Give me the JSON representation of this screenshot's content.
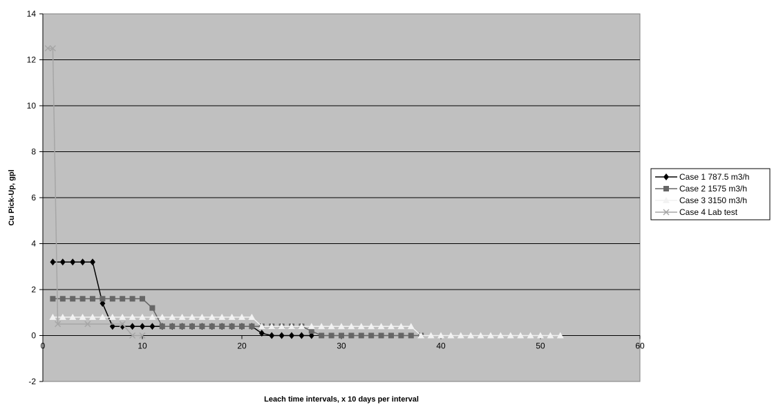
{
  "chart_data": {
    "type": "line",
    "title": "",
    "xlabel": "Leach time intervals, x 10 days per interval",
    "ylabel": "Cu Pick-Up, gpl",
    "xlim": [
      0,
      60
    ],
    "ylim": [
      -2,
      14
    ],
    "xticks": [
      0,
      10,
      20,
      30,
      40,
      50,
      60
    ],
    "yticks": [
      -2,
      0,
      2,
      4,
      6,
      8,
      10,
      12,
      14
    ],
    "grid": "horizontal",
    "legend_position": "right",
    "background": "#c0c0c0",
    "series": [
      {
        "name": "Case 1 787.5 m3/h",
        "color": "#000000",
        "marker": "diamond",
        "x": [
          1,
          2,
          3,
          4,
          5,
          6,
          7,
          8,
          9,
          10,
          11,
          12,
          13,
          14,
          15,
          16,
          17,
          18,
          19,
          20,
          21,
          22,
          23,
          24,
          25,
          26,
          27
        ],
        "y": [
          3.2,
          3.2,
          3.2,
          3.2,
          3.2,
          1.4,
          0.4,
          0.4,
          0.4,
          0.4,
          0.4,
          0.4,
          0.4,
          0.4,
          0.4,
          0.4,
          0.4,
          0.4,
          0.4,
          0.4,
          0.4,
          0.1,
          0,
          0,
          0,
          0,
          0
        ]
      },
      {
        "name": "Case 2 1575 m3/h",
        "color": "#666666",
        "marker": "square",
        "x": [
          1,
          2,
          3,
          4,
          5,
          6,
          7,
          8,
          9,
          10,
          11,
          12,
          13,
          14,
          15,
          16,
          17,
          18,
          19,
          20,
          21,
          22,
          23,
          24,
          25,
          26,
          27,
          28,
          29,
          30,
          31,
          32,
          33,
          34,
          35,
          36,
          37,
          38
        ],
        "y": [
          1.6,
          1.6,
          1.6,
          1.6,
          1.6,
          1.6,
          1.6,
          1.6,
          1.6,
          1.6,
          1.2,
          0.4,
          0.4,
          0.4,
          0.4,
          0.4,
          0.4,
          0.4,
          0.4,
          0.4,
          0.4,
          0.4,
          0.4,
          0.4,
          0.4,
          0.4,
          0.2,
          0,
          0,
          0,
          0,
          0,
          0,
          0,
          0,
          0,
          0,
          0
        ]
      },
      {
        "name": "Case 3 3150 m3/h",
        "color": "#f2f2f2",
        "marker": "triangle",
        "x": [
          1,
          2,
          3,
          4,
          5,
          6,
          7,
          8,
          9,
          10,
          11,
          12,
          13,
          14,
          15,
          16,
          17,
          18,
          19,
          20,
          21,
          22,
          23,
          24,
          25,
          26,
          27,
          28,
          29,
          30,
          31,
          32,
          33,
          34,
          35,
          36,
          37,
          38,
          39,
          40,
          41,
          42,
          43,
          44,
          45,
          46,
          47,
          48,
          49,
          50,
          51,
          52
        ],
        "y": [
          0.8,
          0.8,
          0.8,
          0.8,
          0.8,
          0.8,
          0.8,
          0.8,
          0.8,
          0.8,
          0.8,
          0.8,
          0.8,
          0.8,
          0.8,
          0.8,
          0.8,
          0.8,
          0.8,
          0.8,
          0.8,
          0.4,
          0.4,
          0.4,
          0.4,
          0.4,
          0.4,
          0.4,
          0.4,
          0.4,
          0.4,
          0.4,
          0.4,
          0.4,
          0.4,
          0.4,
          0.4,
          0,
          0,
          0,
          0,
          0,
          0,
          0,
          0,
          0,
          0,
          0,
          0,
          0,
          0,
          0
        ]
      },
      {
        "name": "Case 4 Lab test",
        "color": "#a6a6a6",
        "marker": "x",
        "x": [
          0.5,
          1,
          1.5,
          4.5,
          8,
          9,
          10
        ],
        "y": [
          12.5,
          12.5,
          0.5,
          0.5,
          0.5,
          0,
          0
        ]
      }
    ]
  }
}
